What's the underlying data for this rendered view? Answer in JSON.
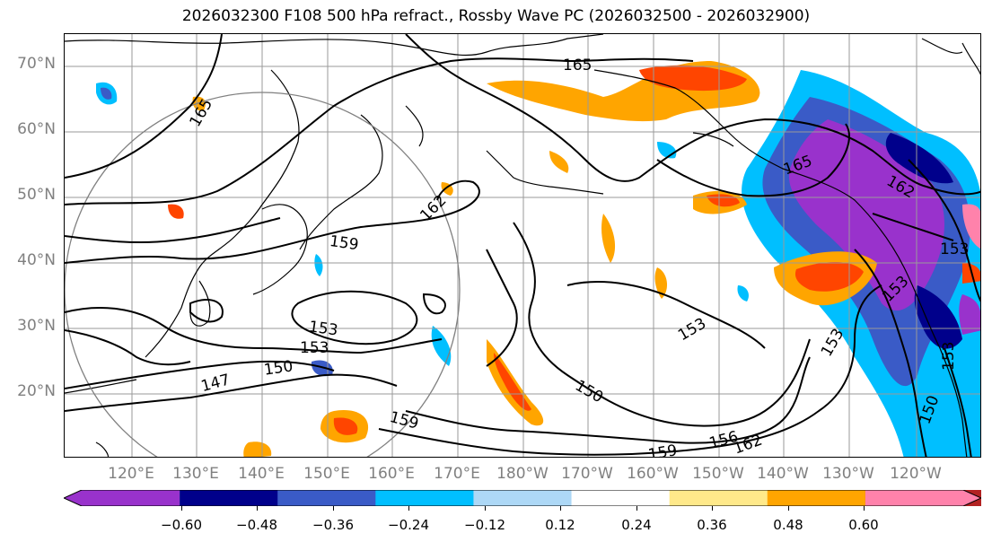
{
  "title": "2026032300 F108 500 hPa refract., Rossby Wave PC (2026032500 - 2026032900)",
  "lat_labels": [
    "70°N",
    "60°N",
    "50°N",
    "40°N",
    "30°N",
    "20°N"
  ],
  "lon_labels": [
    "120°E",
    "130°E",
    "140°E",
    "150°E",
    "160°E",
    "170°E",
    "180°W",
    "170°W",
    "160°W",
    "150°W",
    "140°W",
    "130°W",
    "120°W"
  ],
  "contour_labels": [
    "165",
    "165",
    "165",
    "162",
    "162",
    "159",
    "153",
    "153",
    "150",
    "147",
    "159",
    "150",
    "153",
    "156",
    "159",
    "162",
    "153",
    "153",
    "153",
    "150",
    "153"
  ],
  "colorbar": {
    "tick_labels": [
      "−0.60",
      "−0.48",
      "−0.36",
      "−0.24",
      "−0.12",
      "0.12",
      "0.24",
      "0.36",
      "0.48",
      "0.60"
    ],
    "colors": [
      "#9932CC",
      "#00008B",
      "#3A5BC7",
      "#00BFFF",
      "#ADD8F6",
      "#FFFFFF",
      "#FFE98A",
      "#FFA500",
      "#FF4500",
      "#B22222",
      "#FF82AB"
    ]
  }
}
